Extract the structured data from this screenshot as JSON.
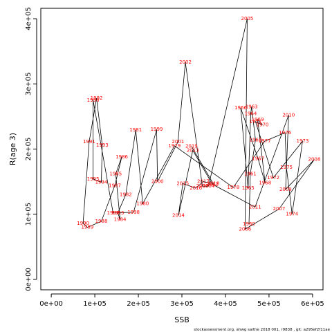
{
  "chart_data": {
    "type": "line",
    "xlabel": "SSB",
    "ylabel": "R(age 3)",
    "xlim": [
      -24000,
      624000
    ],
    "ylim": [
      -16000,
      416000
    ],
    "xticks": [
      0,
      100000,
      200000,
      300000,
      400000,
      500000,
      600000
    ],
    "xtick_labels": [
      "0e+00",
      "1e+05",
      "2e+05",
      "3e+05",
      "4e+05",
      "5e+05",
      "6e+05"
    ],
    "yticks": [
      0,
      100000,
      200000,
      300000,
      400000
    ],
    "ytick_labels": [
      "0e+00",
      "1e+05",
      "2e+05",
      "3e+05",
      "4e+05"
    ],
    "footer": "stockassessment.org, ahwg saithe 2018 001, r9838 , git: a295ef2f11ae",
    "points": [
      {
        "year": "1960",
        "x": 454000,
        "y": 85000
      },
      {
        "year": "1961",
        "x": 457000,
        "y": 162000
      },
      {
        "year": "1962",
        "x": 469000,
        "y": 214000
      },
      {
        "year": "1963",
        "x": 460000,
        "y": 265000
      },
      {
        "year": "1964",
        "x": 458000,
        "y": 254000
      },
      {
        "year": "1965",
        "x": 452000,
        "y": 140000
      },
      {
        "year": "1966",
        "x": 435000,
        "y": 263000
      },
      {
        "year": "1967",
        "x": 475000,
        "y": 185000
      },
      {
        "year": "1968",
        "x": 491000,
        "y": 148000
      },
      {
        "year": "1969",
        "x": 474000,
        "y": 245000
      },
      {
        "year": "1970",
        "x": 485000,
        "y": 237000
      },
      {
        "year": "1971",
        "x": 469000,
        "y": 242000
      },
      {
        "year": "1972",
        "x": 510000,
        "y": 156000
      },
      {
        "year": "1973",
        "x": 577000,
        "y": 212000
      },
      {
        "year": "1974",
        "x": 553000,
        "y": 100000
      },
      {
        "year": "1975",
        "x": 540000,
        "y": 172000
      },
      {
        "year": "1976",
        "x": 537000,
        "y": 225000
      },
      {
        "year": "1977",
        "x": 490000,
        "y": 212000
      },
      {
        "year": "1978",
        "x": 418000,
        "y": 141000
      },
      {
        "year": "1979",
        "x": 283000,
        "y": 205000
      },
      {
        "year": "1980",
        "x": 210000,
        "y": 116000
      },
      {
        "year": "1981",
        "x": 194000,
        "y": 229000
      },
      {
        "year": "1982",
        "x": 171000,
        "y": 130000
      },
      {
        "year": "1983",
        "x": 153000,
        "y": 102000
      },
      {
        "year": "1984",
        "x": 158000,
        "y": 92000
      },
      {
        "year": "1985",
        "x": 148000,
        "y": 162000
      },
      {
        "year": "1986",
        "x": 162000,
        "y": 188000
      },
      {
        "year": "1987",
        "x": 146000,
        "y": 144000
      },
      {
        "year": "1988",
        "x": 115000,
        "y": 89000
      },
      {
        "year": "1989",
        "x": 83000,
        "y": 80000
      },
      {
        "year": "1990",
        "x": 73000,
        "y": 86000
      },
      {
        "year": "1991",
        "x": 87000,
        "y": 211000
      },
      {
        "year": "1992",
        "x": 104000,
        "y": 278000
      },
      {
        "year": "1993",
        "x": 117000,
        "y": 206000
      },
      {
        "year": "1994",
        "x": 115000,
        "y": 149000
      },
      {
        "year": "1995",
        "x": 96000,
        "y": 154000
      },
      {
        "year": "1996",
        "x": 96000,
        "y": 275000
      },
      {
        "year": "1997",
        "x": 142000,
        "y": 102000
      },
      {
        "year": "1998",
        "x": 189000,
        "y": 103000
      },
      {
        "year": "1999",
        "x": 242000,
        "y": 230000
      },
      {
        "year": "2000",
        "x": 244000,
        "y": 150000
      },
      {
        "year": "2001",
        "x": 291000,
        "y": 211000
      },
      {
        "year": "2002",
        "x": 308000,
        "y": 333000
      },
      {
        "year": "2003",
        "x": 347000,
        "y": 143000
      },
      {
        "year": "2004",
        "x": 361000,
        "y": 143000
      },
      {
        "year": "2005",
        "x": 450000,
        "y": 400000
      },
      {
        "year": "2006",
        "x": 445000,
        "y": 77000
      },
      {
        "year": "2007",
        "x": 523000,
        "y": 108000
      },
      {
        "year": "2008",
        "x": 604000,
        "y": 184000
      },
      {
        "year": "2009",
        "x": 538000,
        "y": 138000
      },
      {
        "year": "2010",
        "x": 545000,
        "y": 252000
      },
      {
        "year": "2011",
        "x": 468000,
        "y": 111000
      },
      {
        "year": "2012",
        "x": 370000,
        "y": 146000
      },
      {
        "year": "2013",
        "x": 325000,
        "y": 198000
      },
      {
        "year": "2014",
        "x": 292000,
        "y": 98000
      },
      {
        "year": "2015",
        "x": 302000,
        "y": 147000
      },
      {
        "year": "2016",
        "x": 332000,
        "y": 140000
      },
      {
        "year": "2017",
        "x": 349000,
        "y": 150000
      },
      {
        "year": "2018",
        "x": 372000,
        "y": 147000
      },
      {
        "year": "2019",
        "x": 322000,
        "y": 204000
      }
    ]
  }
}
